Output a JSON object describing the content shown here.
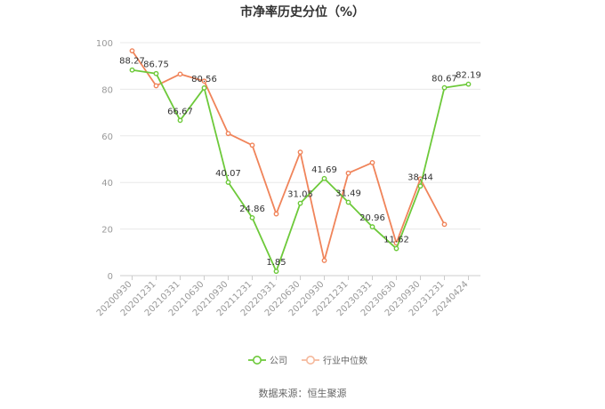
{
  "chart_data": {
    "type": "line",
    "title": "市净率历史分位（%）",
    "xlabel": "",
    "ylabel": "",
    "ylim": [
      0,
      100
    ],
    "yticks": [
      0,
      20,
      40,
      60,
      80,
      100
    ],
    "grid": true,
    "legend_position": "bottom",
    "x": [
      "20200930",
      "20201231",
      "20210331",
      "20210630",
      "20210930",
      "20211231",
      "20220331",
      "20220630",
      "20220930",
      "20221231",
      "20230331",
      "20230630",
      "20230930",
      "20231231",
      "20240424"
    ],
    "series": [
      {
        "name": "公司",
        "color": "#6dc93a",
        "values": [
          88.27,
          86.75,
          66.67,
          80.56,
          40.07,
          24.86,
          1.85,
          31.05,
          41.69,
          31.49,
          20.96,
          11.62,
          38.44,
          80.67,
          82.19
        ],
        "labels": [
          "88.27",
          "86.75",
          "66.67",
          "80.56",
          "40.07",
          "24.86",
          "1.85",
          "31.05",
          "41.69",
          "31.49",
          "20.96",
          "11.62",
          "38.44",
          "80.67",
          "82.19"
        ]
      },
      {
        "name": "行业中位数",
        "color": "#f0845a",
        "values": [
          96.5,
          81.5,
          86.5,
          83.5,
          61.0,
          56.0,
          26.5,
          53.0,
          6.5,
          44.0,
          48.5,
          14.0,
          41.5,
          22.0,
          null
        ]
      }
    ]
  },
  "source_text": "数据来源：恒生聚源"
}
